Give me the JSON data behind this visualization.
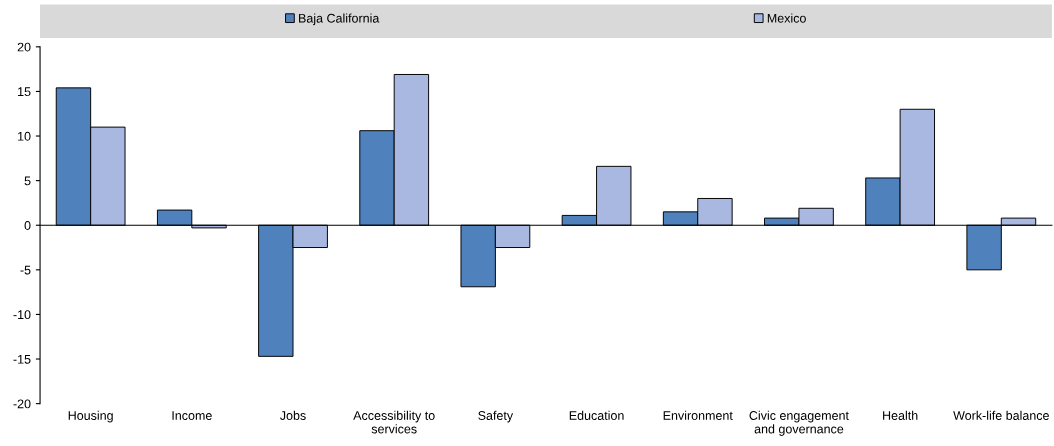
{
  "chart_data": {
    "type": "bar",
    "categories": [
      "Housing",
      "Income",
      "Jobs",
      "Accessibility to\nservices",
      "Safety",
      "Education",
      "Environment",
      "Civic engagement\nand governance",
      "Health",
      "Work-life balance"
    ],
    "series": [
      {
        "name": "Baja California",
        "color": "#4f81bd",
        "values": [
          15.4,
          1.7,
          -14.7,
          10.6,
          -6.9,
          1.1,
          1.5,
          0.8,
          5.3,
          -5.0
        ]
      },
      {
        "name": "Mexico",
        "color": "#a9b8e0",
        "values": [
          11.0,
          -0.3,
          -2.5,
          16.9,
          -2.5,
          6.6,
          3.0,
          1.9,
          13.0,
          0.8
        ]
      }
    ],
    "ylim": [
      -20,
      20
    ],
    "yticks": [
      -20,
      -15,
      -10,
      -5,
      0,
      5,
      10,
      15,
      20
    ],
    "legend": "top"
  }
}
